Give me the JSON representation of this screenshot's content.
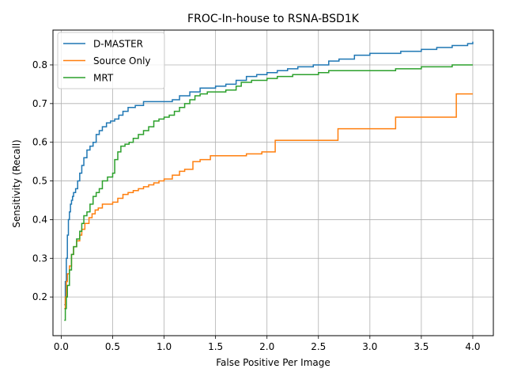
{
  "chart_data": {
    "type": "line",
    "title": "FROC-In-house to RSNA-BSD1K",
    "xlabel": "False Positive Per Image",
    "ylabel": "Sensitivity (Recall)",
    "xlim": [
      -0.08,
      4.2
    ],
    "ylim": [
      0.1,
      0.89
    ],
    "xticks": [
      0.0,
      0.5,
      1.0,
      1.5,
      2.0,
      2.5,
      3.0,
      3.5,
      4.0
    ],
    "xtick_labels": [
      "0.0",
      "0.5",
      "1.0",
      "1.5",
      "2.0",
      "2.5",
      "3.0",
      "3.5",
      "4.0"
    ],
    "yticks": [
      0.2,
      0.3,
      0.4,
      0.5,
      0.6,
      0.7,
      0.8
    ],
    "ytick_labels": [
      "0.2",
      "0.3",
      "0.4",
      "0.5",
      "0.6",
      "0.7",
      "0.8"
    ],
    "grid": true,
    "legend": "upper-left",
    "series": [
      {
        "name": "D-MASTER",
        "color": "#1f77b4",
        "x": [
          0.03,
          0.04,
          0.05,
          0.06,
          0.07,
          0.08,
          0.09,
          0.1,
          0.11,
          0.12,
          0.14,
          0.16,
          0.18,
          0.2,
          0.22,
          0.25,
          0.28,
          0.31,
          0.34,
          0.37,
          0.4,
          0.44,
          0.48,
          0.52,
          0.56,
          0.6,
          0.65,
          0.72,
          0.8,
          0.9,
          1.0,
          1.08,
          1.15,
          1.25,
          1.35,
          1.5,
          1.6,
          1.7,
          1.8,
          1.9,
          2.0,
          2.1,
          2.2,
          2.3,
          2.45,
          2.6,
          2.7,
          2.85,
          3.0,
          3.15,
          3.3,
          3.5,
          3.65,
          3.8,
          3.95,
          4.0
        ],
        "y": [
          0.18,
          0.24,
          0.3,
          0.36,
          0.4,
          0.42,
          0.44,
          0.45,
          0.46,
          0.47,
          0.48,
          0.5,
          0.52,
          0.54,
          0.56,
          0.58,
          0.59,
          0.6,
          0.62,
          0.63,
          0.64,
          0.65,
          0.655,
          0.66,
          0.67,
          0.68,
          0.69,
          0.695,
          0.705,
          0.705,
          0.705,
          0.71,
          0.72,
          0.73,
          0.74,
          0.745,
          0.75,
          0.76,
          0.77,
          0.775,
          0.78,
          0.785,
          0.79,
          0.795,
          0.8,
          0.81,
          0.815,
          0.825,
          0.83,
          0.83,
          0.835,
          0.84,
          0.845,
          0.85,
          0.855,
          0.86
        ]
      },
      {
        "name": "Source Only",
        "color": "#ff7f0e",
        "x": [
          0.03,
          0.04,
          0.05,
          0.06,
          0.08,
          0.1,
          0.12,
          0.15,
          0.18,
          0.2,
          0.23,
          0.27,
          0.3,
          0.33,
          0.36,
          0.4,
          0.5,
          0.55,
          0.6,
          0.65,
          0.7,
          0.75,
          0.8,
          0.85,
          0.9,
          0.95,
          1.0,
          1.08,
          1.15,
          1.2,
          1.28,
          1.35,
          1.45,
          1.55,
          1.7,
          1.8,
          1.95,
          2.08,
          2.5,
          2.69,
          3.0,
          3.25,
          3.5,
          3.84,
          4.0
        ],
        "y": [
          0.17,
          0.2,
          0.24,
          0.26,
          0.28,
          0.31,
          0.33,
          0.345,
          0.36,
          0.375,
          0.39,
          0.405,
          0.415,
          0.425,
          0.43,
          0.44,
          0.445,
          0.455,
          0.465,
          0.47,
          0.475,
          0.48,
          0.485,
          0.49,
          0.495,
          0.5,
          0.505,
          0.515,
          0.525,
          0.53,
          0.55,
          0.555,
          0.565,
          0.565,
          0.565,
          0.57,
          0.575,
          0.605,
          0.605,
          0.635,
          0.635,
          0.665,
          0.665,
          0.725,
          0.725
        ]
      },
      {
        "name": "MRT",
        "color": "#2ca02c",
        "x": [
          0.03,
          0.04,
          0.05,
          0.06,
          0.08,
          0.1,
          0.12,
          0.15,
          0.18,
          0.2,
          0.22,
          0.25,
          0.28,
          0.31,
          0.34,
          0.37,
          0.4,
          0.45,
          0.5,
          0.52,
          0.55,
          0.58,
          0.62,
          0.66,
          0.7,
          0.75,
          0.8,
          0.85,
          0.9,
          0.95,
          1.0,
          1.05,
          1.1,
          1.15,
          1.2,
          1.25,
          1.3,
          1.35,
          1.42,
          1.5,
          1.6,
          1.7,
          1.75,
          1.85,
          2.0,
          2.1,
          2.25,
          2.35,
          2.5,
          2.6,
          2.8,
          3.0,
          3.25,
          3.5,
          3.8,
          4.0
        ],
        "y": [
          0.14,
          0.17,
          0.2,
          0.23,
          0.27,
          0.31,
          0.33,
          0.35,
          0.37,
          0.39,
          0.41,
          0.42,
          0.44,
          0.46,
          0.47,
          0.48,
          0.5,
          0.51,
          0.52,
          0.555,
          0.575,
          0.59,
          0.595,
          0.6,
          0.61,
          0.62,
          0.63,
          0.64,
          0.655,
          0.66,
          0.665,
          0.67,
          0.68,
          0.69,
          0.7,
          0.71,
          0.72,
          0.725,
          0.73,
          0.73,
          0.735,
          0.745,
          0.755,
          0.76,
          0.765,
          0.77,
          0.775,
          0.775,
          0.78,
          0.785,
          0.785,
          0.785,
          0.79,
          0.795,
          0.8,
          0.8
        ]
      }
    ]
  }
}
